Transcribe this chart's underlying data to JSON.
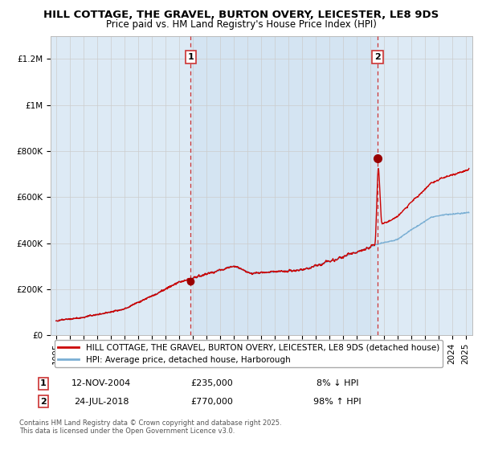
{
  "title": "HILL COTTAGE, THE GRAVEL, BURTON OVERY, LEICESTER, LE8 9DS",
  "subtitle": "Price paid vs. HM Land Registry's House Price Index (HPI)",
  "ylabel_ticks": [
    "£0",
    "£200K",
    "£400K",
    "£600K",
    "£800K",
    "£1M",
    "£1.2M"
  ],
  "ytick_vals": [
    0,
    200000,
    400000,
    600000,
    800000,
    1000000,
    1200000
  ],
  "ylim": [
    0,
    1300000
  ],
  "xlim_start": 1994.6,
  "xlim_end": 2025.5,
  "sale1_year": 2004.87,
  "sale1_price": 235000,
  "sale1_label": "1",
  "sale1_date": "12-NOV-2004",
  "sale1_pct": "8% ↓ HPI",
  "sale2_year": 2018.55,
  "sale2_price": 770000,
  "sale2_label": "2",
  "sale2_date": "24-JUL-2018",
  "sale2_pct": "98% ↑ HPI",
  "hpi_line_color": "#7aafd4",
  "price_line_color": "#cc0000",
  "sale_marker_color": "#990000",
  "vline_color": "#cc3333",
  "grid_color": "#cccccc",
  "bg_color": "#ddeaf5",
  "bg_between_color": "#cce0f0",
  "legend_label_red": "HILL COTTAGE, THE GRAVEL, BURTON OVERY, LEICESTER, LE8 9DS (detached house)",
  "legend_label_blue": "HPI: Average price, detached house, Harborough",
  "footnote": "Contains HM Land Registry data © Crown copyright and database right 2025.\nThis data is licensed under the Open Government Licence v3.0.",
  "title_fontsize": 9.5,
  "subtitle_fontsize": 8.5,
  "axis_fontsize": 7.5,
  "legend_fontsize": 7.5,
  "table_fontsize": 8
}
